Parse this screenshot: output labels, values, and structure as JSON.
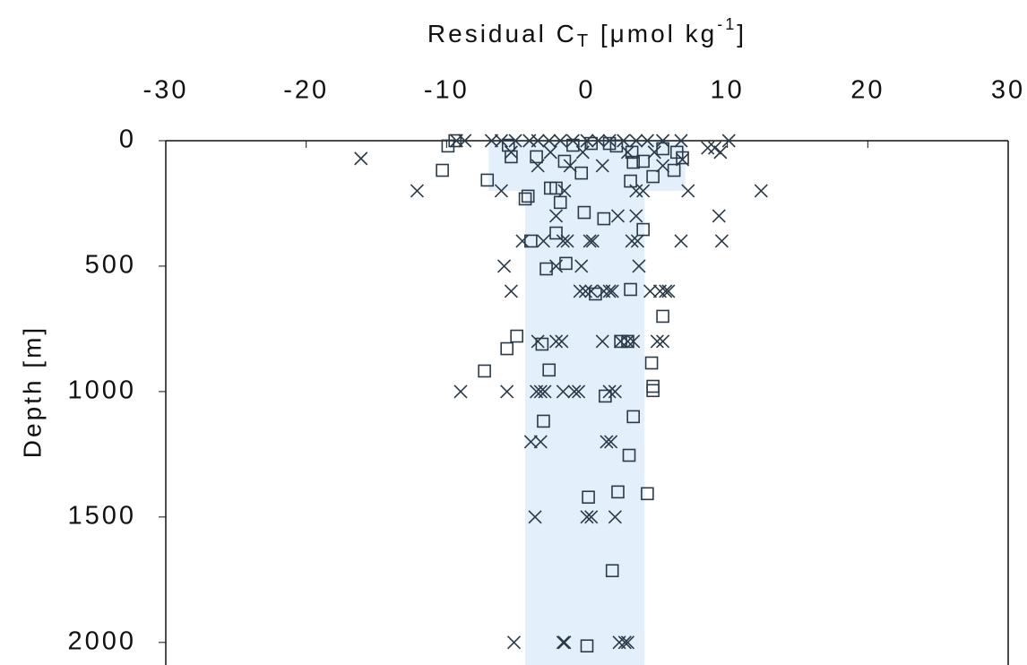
{
  "chart_data": {
    "type": "scatter",
    "xlabel_parts": [
      "Residual C",
      "T",
      " [μmol kg",
      "-1",
      "]"
    ],
    "ylabel": "Depth [m]",
    "xlim": [
      -30,
      30
    ],
    "ylim": [
      0,
      2090
    ],
    "y_inverted": true,
    "x_axis_position": "top",
    "xticks": [
      -30,
      -20,
      -10,
      0,
      10,
      20,
      30
    ],
    "yticks": [
      0,
      500,
      1000,
      1500,
      2000
    ],
    "band": {
      "color": "#e3f0fb",
      "segments": [
        {
          "xlim": [
            -7,
            7
          ],
          "ylim": [
            0,
            200
          ]
        },
        {
          "xlim": [
            -4.4,
            4.1
          ],
          "ylim": [
            200,
            2090
          ]
        }
      ]
    },
    "series": [
      {
        "marker": "x",
        "color": "#2b3a48",
        "x": [
          -16.1,
          -12.1,
          -9.0,
          -9.3,
          -8.7,
          -5.9,
          -5.4,
          -5.7,
          -6.1,
          -5.2,
          -3.7,
          -4.0,
          -3.3,
          -4.6,
          -3.1,
          -1.7,
          -1.4,
          0.2,
          0.4,
          -3.6,
          -3.3,
          -3.0,
          -1.7,
          -0.9,
          -0.6,
          1.6,
          2.0,
          -3.5,
          -2.2,
          -1.8,
          1.1,
          2.4,
          2.9,
          3.3,
          5.0,
          5.4,
          -0.5,
          -0.1,
          0.3,
          1.2,
          1.6,
          1.8,
          4.5,
          5.2,
          5.6,
          5.8,
          3.7,
          -2.2,
          2.2,
          3.5,
          -2.2,
          -0.4,
          3.2,
          3.6,
          6.7,
          9.6,
          9.4,
          7.2,
          12.4,
          3.5,
          4.0,
          -1.6,
          0.0,
          0.3,
          2.0,
          1.4,
          1.7,
          -1.7,
          -1.6,
          2.3,
          2.7,
          2.9,
          10.1,
          8.6,
          9.1,
          9.5,
          6.8,
          5.4,
          -3.5,
          -1.2,
          1.1,
          -6.8,
          -6.1,
          -5.1,
          -4.1,
          -3.5,
          -2.7,
          -1.9,
          -1.0,
          0.0,
          0.8,
          1.6,
          2.6,
          3.5,
          4.3,
          5.4,
          6.7,
          -5.4,
          -2.6,
          -0.3,
          2.9,
          4.8
        ],
        "values": [
          71,
          200,
          1000,
          0,
          0,
          500,
          600,
          1000,
          200,
          2000,
          1500,
          1200,
          1200,
          400,
          400,
          400,
          400,
          400,
          400,
          1000,
          1000,
          1000,
          1000,
          1000,
          1000,
          1000,
          1000,
          800,
          800,
          800,
          800,
          800,
          800,
          800,
          800,
          800,
          600,
          600,
          600,
          600,
          600,
          600,
          600,
          600,
          600,
          600,
          500,
          300,
          300,
          300,
          500,
          500,
          400,
          400,
          400,
          400,
          300,
          200,
          200,
          200,
          200,
          200,
          1500,
          1500,
          1500,
          1200,
          1200,
          2000,
          2000,
          2000,
          2000,
          2000,
          0,
          29,
          29,
          46,
          75,
          100,
          100,
          100,
          100,
          0,
          0,
          0,
          0,
          0,
          0,
          0,
          0,
          0,
          0,
          0,
          0,
          0,
          0,
          0,
          0,
          46,
          46,
          46,
          46,
          46
        ]
      },
      {
        "marker": "square",
        "color": "#2b3a48",
        "x": [
          -9.4,
          -9.9,
          -10.3,
          -7.1,
          -4.4,
          -4.2,
          -2.6,
          -2.2,
          -1.9,
          -0.2,
          1.2,
          4.0,
          -4.0,
          -2.2,
          -2.9,
          -1.5,
          0.6,
          3.1,
          5.4,
          -5.0,
          -3.2,
          -5.7,
          -7.3,
          -2.7,
          4.6,
          4.7,
          4.7,
          1.3,
          -3.1,
          3.3,
          3.0,
          2.2,
          4.3,
          0.1,
          1.8,
          0.0,
          2.4,
          2.9,
          -5.6,
          -3.6,
          -1.6,
          -0.4,
          2.1,
          3.2,
          4.0,
          5.4,
          6.4,
          6.8,
          6.2,
          4.7,
          3.3,
          3.1,
          -5.4,
          -1.0,
          0.3,
          1.6
        ],
        "values": [
          0,
          21,
          118,
          157,
          232,
          221,
          189,
          189,
          246,
          286,
          311,
          354,
          400,
          368,
          511,
          489,
          611,
          593,
          700,
          779,
          811,
          829,
          918,
          914,
          886,
          979,
          996,
          1018,
          1118,
          1100,
          1254,
          1400,
          1407,
          1421,
          1714,
          2014,
          800,
          800,
          18,
          64,
          82,
          129,
          21,
          46,
          82,
          32,
          46,
          68,
          118,
          143,
          86,
          161,
          64,
          18,
          11,
          11
        ]
      }
    ]
  }
}
